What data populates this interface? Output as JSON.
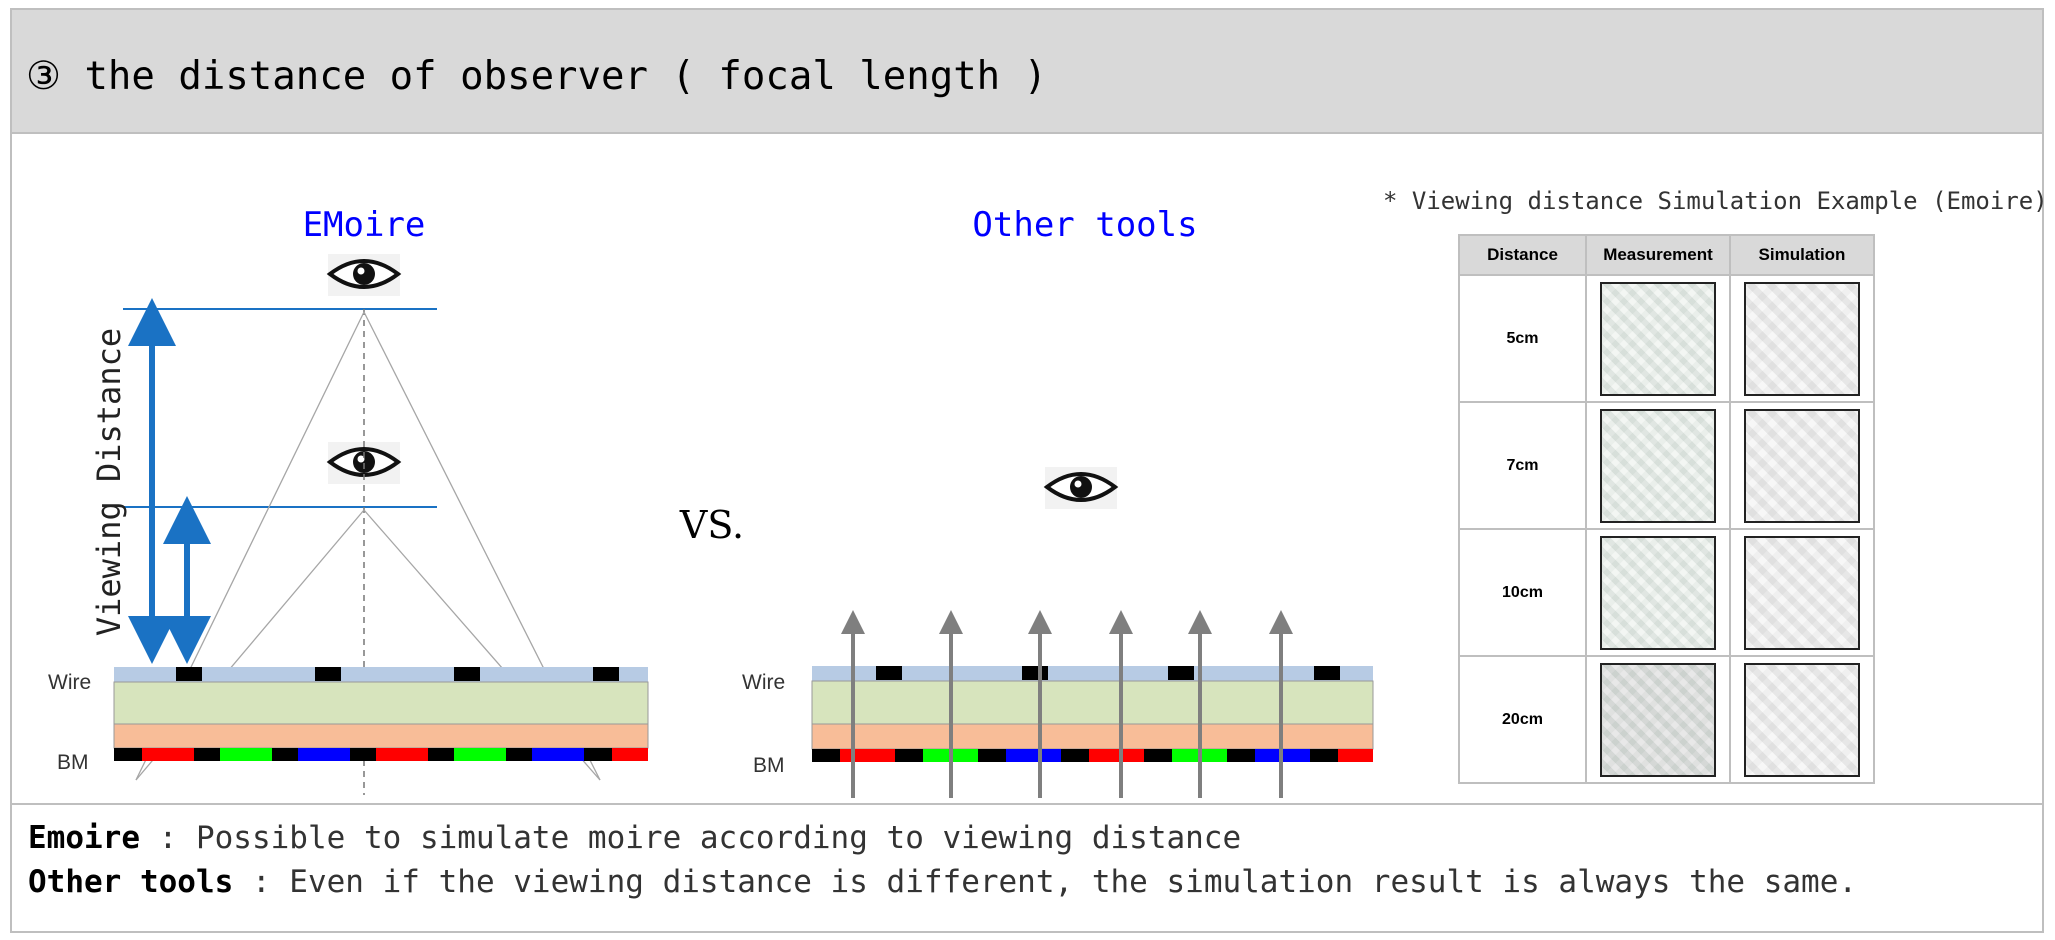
{
  "header": {
    "title": "③ the distance of observer ( focal length )"
  },
  "left_panel": {
    "title": "EMoire",
    "viewing_label": "Viewing Distance",
    "wire_label": "Wire",
    "bm_label": "BM"
  },
  "vs_label": "VS.",
  "right_panel": {
    "title": "Other tools",
    "wire_label": "Wire",
    "bm_label": "BM"
  },
  "colors": {
    "title_blue": "#0000ff",
    "arrow_blue": "#1a72c4",
    "wire_layer": "#b7cbe4",
    "green_layer": "#d7e4bd",
    "orange_layer": "#f8bd98",
    "red": "#ff0000",
    "green": "#00ff00",
    "blue": "#0000ff"
  },
  "simulation": {
    "caption": "* Viewing distance Simulation Example (Emoire)",
    "headers": [
      "Distance",
      "Measurement",
      "Simulation"
    ],
    "rows": [
      {
        "distance": "5cm"
      },
      {
        "distance": "7cm"
      },
      {
        "distance": "10cm"
      },
      {
        "distance": "20cm"
      }
    ]
  },
  "footer": {
    "line1_term": "Emoire",
    "line1_text": " : Possible to simulate moire according to viewing distance",
    "line2_term": "Other tools",
    "line2_text": " : Even if the viewing distance is different, the simulation result is always the same."
  }
}
